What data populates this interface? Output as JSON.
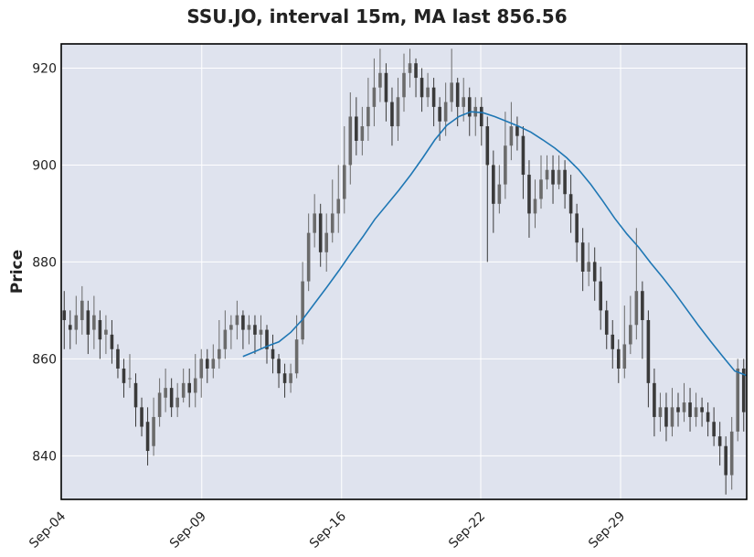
{
  "chart_data": {
    "type": "candlestick",
    "title": "SSU.JO, interval 15m, MA last 856.56",
    "ylabel": "Price",
    "xlabel": "",
    "ylim": [
      831,
      925
    ],
    "yticks": [
      840,
      860,
      880,
      900,
      920
    ],
    "xticks": [
      "Sep-04",
      "Sep-09",
      "Sep-16",
      "Sep-22",
      "Sep-29"
    ],
    "grid": true,
    "colors": {
      "background": "#dfe3ee",
      "grid": "#ffffff",
      "candle": "#3a3a3a",
      "candle_up": "#6b6b6b",
      "ma": "#1f77b4",
      "frame": "#000000"
    },
    "candles": [
      [
        870,
        868,
        874,
        862
      ],
      [
        867,
        866,
        870,
        862
      ],
      [
        866,
        869,
        873,
        863
      ],
      [
        868,
        872,
        875,
        865
      ],
      [
        870,
        865,
        872,
        861
      ],
      [
        866,
        869,
        873,
        862
      ],
      [
        868,
        864,
        870,
        860
      ],
      [
        865,
        866,
        869,
        861
      ],
      [
        865,
        862,
        868,
        859
      ],
      [
        862,
        858,
        863,
        856
      ],
      [
        858,
        855,
        860,
        852
      ],
      [
        856,
        856,
        861,
        854
      ],
      [
        855,
        850,
        857,
        846
      ],
      [
        850,
        846,
        852,
        844
      ],
      [
        847,
        841,
        850,
        838
      ],
      [
        842,
        848,
        852,
        840
      ],
      [
        848,
        853,
        856,
        846
      ],
      [
        852,
        854,
        858,
        849
      ],
      [
        854,
        850,
        856,
        848
      ],
      [
        850,
        852,
        855,
        848
      ],
      [
        852,
        855,
        858,
        851
      ],
      [
        855,
        853,
        858,
        850
      ],
      [
        853,
        856,
        861,
        850
      ],
      [
        856,
        860,
        862,
        852
      ],
      [
        860,
        858,
        862,
        855
      ],
      [
        858,
        860,
        863,
        856
      ],
      [
        860,
        862,
        868,
        858
      ],
      [
        862,
        866,
        870,
        860
      ],
      [
        866,
        867,
        869,
        862
      ],
      [
        867,
        869,
        872,
        864
      ],
      [
        869,
        866,
        870,
        862
      ],
      [
        866,
        867,
        869,
        863
      ],
      [
        867,
        865,
        869,
        861
      ],
      [
        865,
        866,
        869,
        862
      ],
      [
        866,
        862,
        867,
        859
      ],
      [
        862,
        860,
        865,
        857
      ],
      [
        860,
        857,
        861,
        854
      ],
      [
        857,
        855,
        859,
        852
      ],
      [
        855,
        857,
        859,
        853
      ],
      [
        857,
        864,
        869,
        856
      ],
      [
        864,
        876,
        880,
        863
      ],
      [
        876,
        886,
        890,
        874
      ],
      [
        886,
        890,
        894,
        883
      ],
      [
        890,
        882,
        892,
        879
      ],
      [
        882,
        886,
        890,
        878
      ],
      [
        886,
        890,
        897,
        884
      ],
      [
        890,
        893,
        900,
        886
      ],
      [
        893,
        900,
        908,
        890
      ],
      [
        900,
        910,
        915,
        896
      ],
      [
        910,
        905,
        914,
        902
      ],
      [
        905,
        908,
        912,
        902
      ],
      [
        908,
        912,
        918,
        905
      ],
      [
        912,
        916,
        922,
        908
      ],
      [
        916,
        919,
        924,
        913
      ],
      [
        919,
        913,
        921,
        909
      ],
      [
        913,
        908,
        916,
        904
      ],
      [
        908,
        914,
        918,
        905
      ],
      [
        914,
        919,
        923,
        911
      ],
      [
        919,
        921,
        924,
        916
      ],
      [
        921,
        918,
        922,
        914
      ],
      [
        918,
        914,
        920,
        911
      ],
      [
        914,
        916,
        919,
        912
      ],
      [
        916,
        912,
        918,
        908
      ],
      [
        912,
        909,
        914,
        905
      ],
      [
        909,
        913,
        917,
        906
      ],
      [
        913,
        917,
        924,
        911
      ],
      [
        917,
        912,
        918,
        908
      ],
      [
        912,
        914,
        918,
        909
      ],
      [
        914,
        910,
        916,
        906
      ],
      [
        910,
        912,
        914,
        906
      ],
      [
        912,
        908,
        914,
        904
      ],
      [
        908,
        900,
        910,
        880
      ],
      [
        900,
        892,
        903,
        886
      ],
      [
        892,
        896,
        900,
        890
      ],
      [
        896,
        904,
        911,
        893
      ],
      [
        904,
        908,
        913,
        901
      ],
      [
        908,
        906,
        910,
        903
      ],
      [
        906,
        898,
        908,
        893
      ],
      [
        898,
        890,
        901,
        885
      ],
      [
        890,
        893,
        897,
        887
      ],
      [
        893,
        897,
        902,
        891
      ],
      [
        897,
        899,
        902,
        895
      ],
      [
        899,
        896,
        902,
        892
      ],
      [
        896,
        899,
        902,
        895
      ],
      [
        899,
        894,
        901,
        891
      ],
      [
        894,
        890,
        898,
        886
      ],
      [
        890,
        884,
        892,
        880
      ],
      [
        884,
        878,
        887,
        874
      ],
      [
        878,
        880,
        884,
        875
      ],
      [
        880,
        876,
        883,
        872
      ],
      [
        876,
        870,
        879,
        866
      ],
      [
        870,
        865,
        872,
        862
      ],
      [
        865,
        862,
        868,
        858
      ],
      [
        862,
        858,
        864,
        855
      ],
      [
        858,
        863,
        871,
        856
      ],
      [
        863,
        867,
        873,
        861
      ],
      [
        867,
        874,
        887,
        864
      ],
      [
        874,
        868,
        876,
        860
      ],
      [
        868,
        855,
        870,
        850
      ],
      [
        855,
        848,
        858,
        844
      ],
      [
        848,
        850,
        853,
        845
      ],
      [
        850,
        846,
        853,
        843
      ],
      [
        846,
        850,
        854,
        844
      ],
      [
        850,
        849,
        853,
        846
      ],
      [
        849,
        851,
        855,
        847
      ],
      [
        851,
        848,
        854,
        845
      ],
      [
        848,
        850,
        853,
        846
      ],
      [
        850,
        849,
        852,
        846
      ],
      [
        849,
        847,
        851,
        844
      ],
      [
        847,
        844,
        850,
        842
      ],
      [
        844,
        842,
        847,
        838
      ],
      [
        842,
        836,
        844,
        832
      ],
      [
        836,
        845,
        848,
        833
      ],
      [
        845,
        858,
        860,
        843
      ],
      [
        858,
        849,
        860,
        845
      ]
    ],
    "ma_series": [
      860.5,
      861.5,
      862.6,
      863.5,
      865.5,
      868.2,
      871.5,
      874.8,
      878.2,
      881.8,
      885.2,
      888.8,
      891.8,
      894.8,
      898.0,
      901.5,
      905.2,
      908.2,
      910.0,
      911.0,
      910.8,
      910.0,
      909.0,
      908.0,
      906.8,
      905.2,
      903.5,
      901.5,
      899.0,
      896.0,
      892.6,
      889.0,
      885.8,
      883.0,
      879.8,
      876.8,
      873.6,
      870.2,
      866.8,
      863.6,
      860.5,
      857.5,
      856.56
    ]
  }
}
